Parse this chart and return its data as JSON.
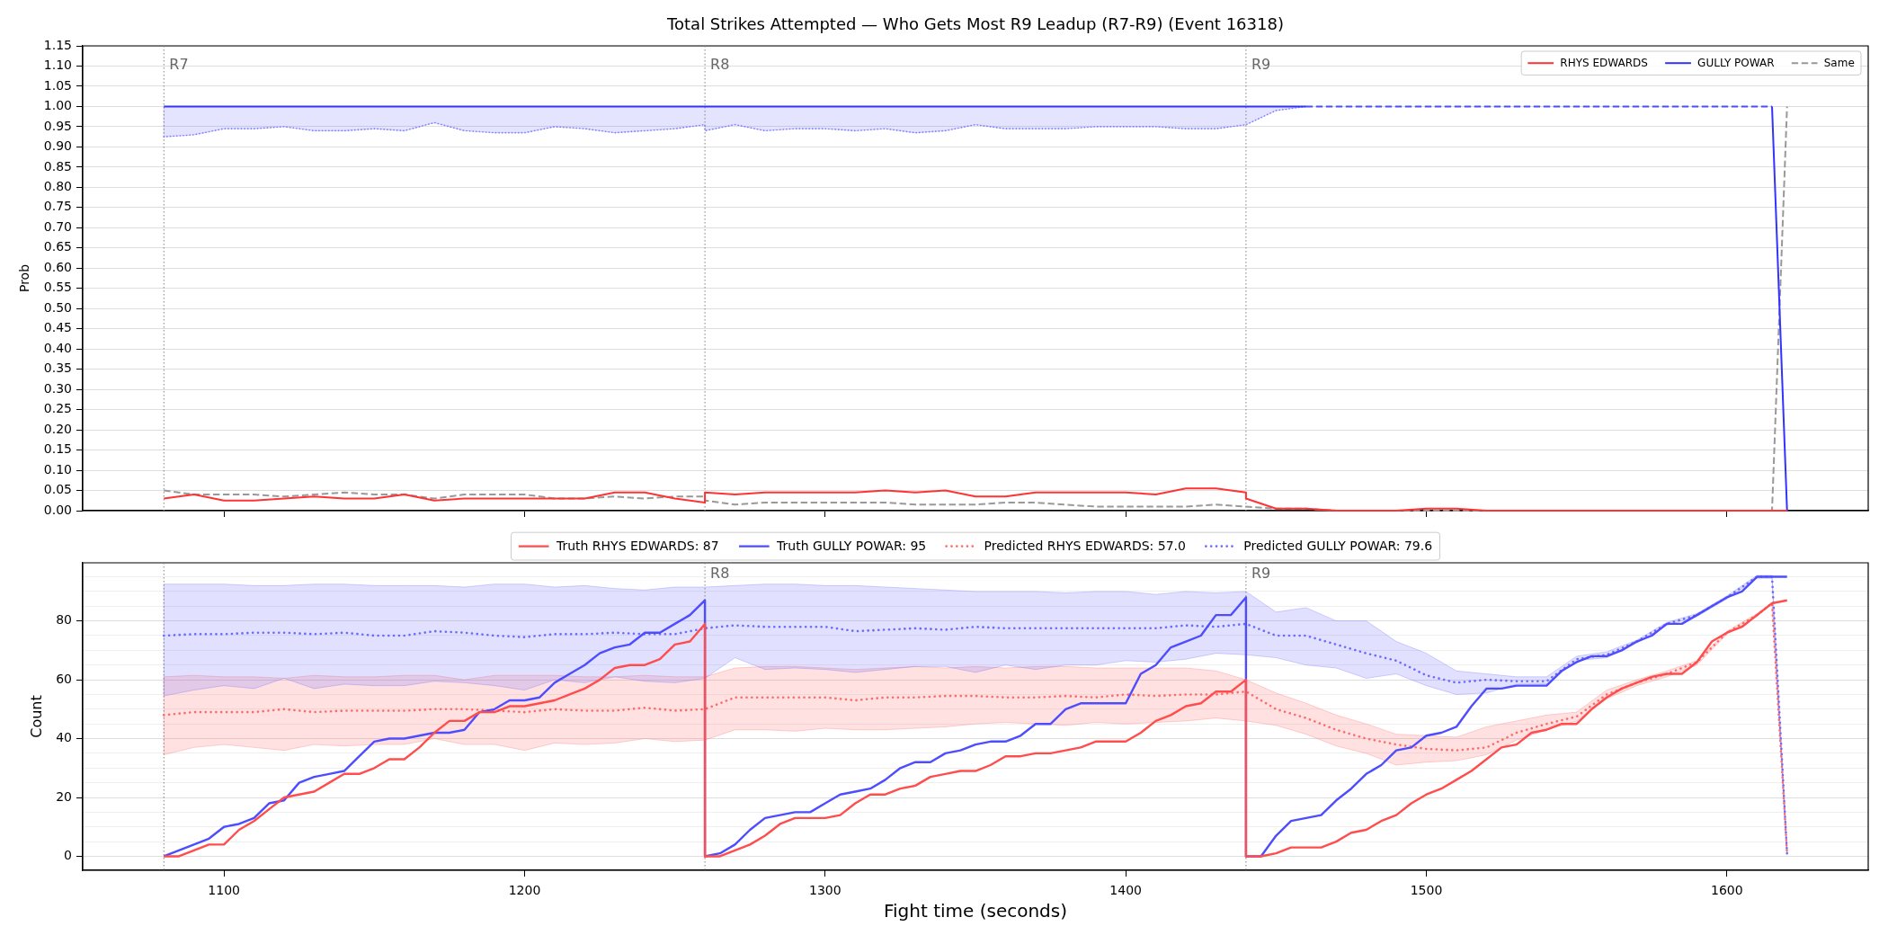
{
  "chart_data": [
    {
      "type": "line",
      "title": "Total Strikes Attempted — Who Gets Most R9 Leadup (R7-R9) (Event 16318)",
      "ylabel": "Prob",
      "xlim": [
        1053,
        1647
      ],
      "xticks": [
        1100,
        1200,
        1300,
        1400,
        1500,
        1600
      ],
      "ylim": [
        0,
        1.15
      ],
      "yticks": [
        {
          "value": 0,
          "label": "0.00"
        },
        {
          "value": 0.05,
          "label": "0.05"
        },
        {
          "value": 0.1,
          "label": "0.10"
        },
        {
          "value": 0.15,
          "label": "0.15"
        },
        {
          "value": 0.2,
          "label": "0.20"
        },
        {
          "value": 0.25,
          "label": "0.25"
        },
        {
          "value": 0.3,
          "label": "0.30"
        },
        {
          "value": 0.35,
          "label": "0.35"
        },
        {
          "value": 0.4,
          "label": "0.40"
        },
        {
          "value": 0.45,
          "label": "0.45"
        },
        {
          "value": 0.5,
          "label": "0.50"
        },
        {
          "value": 0.55,
          "label": "0.55"
        },
        {
          "value": 0.6,
          "label": "0.60"
        },
        {
          "value": 0.65,
          "label": "0.65"
        },
        {
          "value": 0.7,
          "label": "0.70"
        },
        {
          "value": 0.75,
          "label": "0.75"
        },
        {
          "value": 0.8,
          "label": "0.80"
        },
        {
          "value": 0.85,
          "label": "0.85"
        },
        {
          "value": 0.9,
          "label": "0.90"
        },
        {
          "value": 0.95,
          "label": "0.95"
        },
        {
          "value": 1,
          "label": "1.00"
        },
        {
          "value": 1.05,
          "label": "1.05"
        },
        {
          "value": 1.1,
          "label": "1.10"
        },
        {
          "value": 1.15,
          "label": "1.15"
        }
      ],
      "grid": "y",
      "legend": "top right",
      "tick_labels": "y",
      "x": [
        1080,
        1090,
        1100,
        1110,
        1120,
        1130,
        1140,
        1150,
        1160,
        1170,
        1180,
        1190,
        1200,
        1210,
        1220,
        1230,
        1240,
        1250,
        1260,
        1260,
        1270,
        1280,
        1290,
        1300,
        1310,
        1320,
        1330,
        1340,
        1350,
        1360,
        1370,
        1380,
        1390,
        1400,
        1410,
        1420,
        1430,
        1440,
        1440,
        1450,
        1460,
        1470,
        1480,
        1490,
        1500,
        1510,
        1520,
        1530,
        1540,
        1550,
        1560,
        1570,
        1580,
        1590,
        1600,
        1610,
        1615,
        1620
      ],
      "series": [
        {
          "name": "RHYS EDWARDS",
          "color": "#ff3333",
          "line_style": "solid",
          "values": [
            0.03,
            0.04,
            0.025,
            0.025,
            0.03,
            0.035,
            0.03,
            0.03,
            0.04,
            0.025,
            0.03,
            0.03,
            0.03,
            0.03,
            0.03,
            0.045,
            0.045,
            0.03,
            0.02,
            0.045,
            0.04,
            0.045,
            0.045,
            0.045,
            0.045,
            0.05,
            0.045,
            0.05,
            0.035,
            0.035,
            0.045,
            0.045,
            0.045,
            0.045,
            0.04,
            0.055,
            0.055,
            0.045,
            0.03,
            0.005,
            0.005,
            0,
            0,
            0,
            0.005,
            0.005,
            0,
            0,
            0,
            0,
            0,
            0,
            0,
            0,
            0,
            0,
            0,
            0
          ]
        },
        {
          "name": "GULLY POWAR",
          "color": "#3333ff",
          "line_style": "solid",
          "values": [
            1,
            1,
            1,
            1,
            1,
            1,
            1,
            1,
            1,
            1,
            1,
            1,
            1,
            1,
            1,
            1,
            1,
            1,
            1,
            1,
            1,
            1,
            1,
            1,
            1,
            1,
            1,
            1,
            1,
            1,
            1,
            1,
            1,
            1,
            1,
            1,
            1,
            1,
            1,
            1,
            1,
            null,
            null,
            null,
            null,
            null,
            null,
            null,
            null,
            null,
            null,
            null,
            null,
            null,
            null,
            null,
            1,
            0
          ]
        },
        {
          "name": "Same",
          "color": "#999999",
          "line_style": "dashed",
          "values": [
            0.05,
            0.04,
            0.04,
            0.04,
            0.035,
            0.04,
            0.045,
            0.04,
            0.04,
            0.03,
            0.04,
            0.04,
            0.04,
            0.03,
            0.03,
            0.035,
            0.03,
            0.035,
            0.035,
            0.025,
            0.015,
            0.02,
            0.02,
            0.02,
            0.02,
            0.02,
            0.015,
            0.015,
            0.015,
            0.02,
            0.02,
            0.015,
            0.01,
            0.01,
            0.01,
            0.01,
            0.015,
            0.01,
            0.01,
            0.005,
            0.005,
            0,
            0,
            0,
            0,
            0,
            0,
            0,
            0,
            0,
            0,
            0,
            0,
            0,
            0,
            0,
            0,
            1
          ]
        },
        {
          "color": "#7a7aff",
          "line_style": "dotted",
          "values": [
            0.925,
            0.93,
            0.945,
            0.945,
            0.95,
            0.94,
            0.94,
            0.945,
            0.94,
            0.96,
            0.94,
            0.935,
            0.935,
            0.95,
            0.945,
            0.935,
            0.94,
            0.945,
            0.955,
            0.94,
            0.955,
            0.94,
            0.945,
            0.945,
            0.94,
            0.945,
            0.935,
            0.94,
            0.955,
            0.945,
            0.945,
            0.945,
            0.95,
            0.95,
            0.95,
            0.945,
            0.945,
            0.955,
            0.955,
            0.99,
            1,
            null,
            null,
            null,
            null,
            null,
            null,
            null,
            null,
            null,
            null,
            null,
            null,
            null,
            null,
            null,
            null,
            null
          ],
          "lower": [
            0.925,
            0.93,
            0.945,
            0.945,
            0.95,
            0.94,
            0.94,
            0.945,
            0.94,
            0.96,
            0.94,
            0.935,
            0.935,
            0.95,
            0.945,
            0.935,
            0.94,
            0.945,
            0.955,
            0.94,
            0.955,
            0.94,
            0.945,
            0.945,
            0.94,
            0.945,
            0.935,
            0.94,
            0.955,
            0.945,
            0.945,
            0.945,
            0.95,
            0.95,
            0.95,
            0.945,
            0.945,
            0.955,
            0.955,
            0.99,
            1,
            null,
            null,
            null,
            null,
            null,
            null,
            null,
            null,
            null,
            null,
            null,
            null,
            null,
            null,
            null,
            null,
            null
          ],
          "upper": [
            1,
            1,
            1,
            1,
            1,
            1,
            1,
            1,
            1,
            1,
            1,
            1,
            1,
            1,
            1,
            1,
            1,
            1,
            1,
            1,
            1,
            1,
            1,
            1,
            1,
            1,
            1,
            1,
            1,
            1,
            1,
            1,
            1,
            1,
            1,
            1,
            1,
            1,
            1,
            1,
            1,
            null,
            null,
            null,
            null,
            null,
            null,
            null,
            null,
            null,
            null,
            null,
            null,
            null,
            null,
            null,
            null,
            null
          ]
        },
        {
          "color": "#4d4dff",
          "line_style": "dashed",
          "x": [
            1460,
            1615
          ],
          "values": [
            1,
            1
          ]
        }
      ],
      "ref_lines": [
        {
          "axis": "x",
          "value": 1080,
          "label": "R7",
          "color": "#808080",
          "line_style": "dotted"
        },
        {
          "axis": "x",
          "value": 1260,
          "label": "R8",
          "color": "#808080",
          "line_style": "dotted"
        },
        {
          "axis": "x",
          "value": 1440,
          "label": "R9",
          "color": "#808080",
          "line_style": "dotted"
        }
      ]
    },
    {
      "type": "line",
      "xlabel": "Fight time (seconds)",
      "ylabel": "Count",
      "xlim": [
        1053,
        1647
      ],
      "xticks": [
        1100,
        1200,
        1300,
        1400,
        1500,
        1600
      ],
      "ylim": [
        -4.75,
        99.75
      ],
      "yticks": [
        0,
        {
          "value": 5,
          "label": null
        },
        {
          "value": 10,
          "label": null
        },
        {
          "value": 15,
          "label": null
        },
        20,
        {
          "value": 25,
          "label": null
        },
        {
          "value": 30,
          "label": null
        },
        {
          "value": 35,
          "label": null
        },
        40,
        {
          "value": 45,
          "label": null
        },
        {
          "value": 50,
          "label": null
        },
        {
          "value": 55,
          "label": null
        },
        60,
        {
          "value": 65,
          "label": null
        },
        {
          "value": 70,
          "label": null
        },
        {
          "value": 75,
          "label": null
        },
        80,
        {
          "value": 85,
          "label": null
        },
        {
          "value": 90,
          "label": null
        },
        {
          "value": 95,
          "label": null
        }
      ],
      "grid": "y",
      "legend": "top",
      "x": [
        1080,
        1090,
        1100,
        1110,
        1120,
        1130,
        1140,
        1150,
        1160,
        1170,
        1180,
        1190,
        1200,
        1210,
        1220,
        1230,
        1240,
        1250,
        1260,
        1270,
        1280,
        1290,
        1300,
        1310,
        1320,
        1330,
        1340,
        1350,
        1360,
        1370,
        1380,
        1390,
        1400,
        1410,
        1420,
        1430,
        1440,
        1450,
        1460,
        1470,
        1480,
        1490,
        1500,
        1510,
        1520,
        1530,
        1540,
        1550,
        1560,
        1570,
        1580,
        1590,
        1600,
        1610,
        1615,
        1620
      ],
      "series": [
        {
          "name": "Truth RHYS EDWARDS: 87",
          "color": "#ff4d4d",
          "line_style": "solid",
          "x": [
            1080,
            1085,
            1090,
            1095,
            1100,
            1105,
            1110,
            1115,
            1120,
            1125,
            1130,
            1135,
            1140,
            1145,
            1150,
            1155,
            1160,
            1165,
            1170,
            1175,
            1180,
            1185,
            1190,
            1195,
            1200,
            1205,
            1210,
            1215,
            1220,
            1225,
            1230,
            1235,
            1240,
            1245,
            1250,
            1255,
            1260,
            1260,
            1265,
            1270,
            1275,
            1280,
            1285,
            1290,
            1295,
            1300,
            1305,
            1310,
            1315,
            1320,
            1325,
            1330,
            1335,
            1340,
            1345,
            1350,
            1355,
            1360,
            1365,
            1370,
            1375,
            1380,
            1385,
            1390,
            1395,
            1400,
            1405,
            1410,
            1415,
            1420,
            1425,
            1430,
            1435,
            1440,
            1440,
            1445,
            1450,
            1455,
            1460,
            1465,
            1470,
            1475,
            1480,
            1485,
            1490,
            1495,
            1500,
            1505,
            1510,
            1515,
            1520,
            1525,
            1530,
            1535,
            1540,
            1545,
            1550,
            1555,
            1560,
            1565,
            1570,
            1575,
            1580,
            1585,
            1590,
            1595,
            1600,
            1605,
            1610,
            1615,
            1620
          ],
          "values": [
            0,
            0,
            2,
            4,
            4,
            9,
            12,
            16,
            20,
            21,
            22,
            25,
            28,
            28,
            30,
            33,
            33,
            37,
            42,
            46,
            46,
            49,
            49,
            51,
            51,
            52,
            53,
            55,
            57,
            60,
            64,
            65,
            65,
            67,
            72,
            73,
            79,
            0,
            0,
            2,
            4,
            7,
            11,
            13,
            13,
            13,
            14,
            18,
            21,
            21,
            23,
            24,
            27,
            28,
            29,
            29,
            31,
            34,
            34,
            35,
            35,
            36,
            37,
            39,
            39,
            39,
            42,
            46,
            48,
            51,
            52,
            56,
            56,
            60,
            0,
            0,
            1,
            3,
            3,
            3,
            5,
            8,
            9,
            12,
            14,
            18,
            21,
            23,
            26,
            29,
            33,
            37,
            38,
            42,
            43,
            45,
            45,
            50,
            54,
            57,
            59,
            61,
            62,
            62,
            66,
            73,
            76,
            78,
            82,
            86,
            87
          ]
        },
        {
          "name": "Truth GULLY POWAR: 95",
          "color": "#4d4dff",
          "line_style": "solid",
          "x": [
            1080,
            1085,
            1090,
            1095,
            1100,
            1105,
            1110,
            1115,
            1120,
            1125,
            1130,
            1135,
            1140,
            1145,
            1150,
            1155,
            1160,
            1165,
            1170,
            1175,
            1180,
            1185,
            1190,
            1195,
            1200,
            1205,
            1210,
            1215,
            1220,
            1225,
            1230,
            1235,
            1240,
            1245,
            1250,
            1255,
            1260,
            1260,
            1265,
            1270,
            1275,
            1280,
            1285,
            1290,
            1295,
            1300,
            1305,
            1310,
            1315,
            1320,
            1325,
            1330,
            1335,
            1340,
            1345,
            1350,
            1355,
            1360,
            1365,
            1370,
            1375,
            1380,
            1385,
            1390,
            1395,
            1400,
            1405,
            1410,
            1415,
            1420,
            1425,
            1430,
            1435,
            1440,
            1440,
            1445,
            1450,
            1455,
            1460,
            1465,
            1470,
            1475,
            1480,
            1485,
            1490,
            1495,
            1500,
            1505,
            1510,
            1515,
            1520,
            1525,
            1530,
            1535,
            1540,
            1545,
            1550,
            1555,
            1560,
            1565,
            1570,
            1575,
            1580,
            1585,
            1590,
            1595,
            1600,
            1605,
            1610,
            1615,
            1620
          ],
          "values": [
            0,
            2,
            4,
            6,
            10,
            11,
            13,
            18,
            19,
            25,
            27,
            28,
            29,
            34,
            39,
            40,
            40,
            41,
            42,
            42,
            43,
            49,
            50,
            53,
            53,
            54,
            59,
            62,
            65,
            69,
            71,
            72,
            76,
            76,
            79,
            82,
            87,
            0,
            1,
            4,
            9,
            13,
            14,
            15,
            15,
            18,
            21,
            22,
            23,
            26,
            30,
            32,
            32,
            35,
            36,
            38,
            39,
            39,
            41,
            45,
            45,
            50,
            52,
            52,
            52,
            52,
            62,
            65,
            71,
            73,
            75,
            82,
            82,
            88,
            0,
            0,
            7,
            12,
            13,
            14,
            19,
            23,
            28,
            31,
            36,
            37,
            41,
            42,
            44,
            51,
            57,
            57,
            58,
            58,
            58,
            63,
            66,
            68,
            68,
            70,
            73,
            75,
            79,
            79,
            82,
            85,
            88,
            90,
            95,
            95,
            95
          ]
        },
        {
          "name": "Predicted RHYS EDWARDS: 57.0",
          "color": "#ff6b6b",
          "line_style": "dotted",
          "values": [
            48,
            49,
            49,
            49,
            50,
            49,
            49.5,
            49.5,
            49.5,
            50,
            50,
            49.5,
            49,
            50,
            49.5,
            49.5,
            50.5,
            49.5,
            50,
            54,
            54,
            54,
            54,
            53,
            54,
            54,
            54.5,
            54.5,
            54,
            54,
            54.5,
            54,
            55,
            54.5,
            55,
            55,
            56,
            50,
            47,
            43,
            40,
            38,
            36.5,
            36,
            37,
            42,
            45,
            47.5,
            55,
            59,
            62,
            66,
            76,
            82,
            86,
            1
          ],
          "lower": [
            34.5,
            37,
            38,
            37,
            36,
            38,
            37.5,
            38,
            38,
            40,
            38,
            38,
            36,
            38.5,
            38,
            38.5,
            40,
            39,
            39.5,
            43,
            43,
            42.5,
            43.5,
            43,
            43,
            43.5,
            44,
            45,
            45.5,
            45,
            44.5,
            45.5,
            45,
            45.5,
            46,
            47,
            46,
            44.5,
            41.5,
            37.5,
            35,
            31,
            32,
            32.5,
            34.5,
            39.5,
            43,
            46,
            53.5,
            58,
            61,
            65,
            75.5,
            81.5,
            86,
            1
          ],
          "upper": [
            61,
            61.5,
            61,
            61,
            60.5,
            61.5,
            61,
            61,
            61.5,
            61.5,
            60,
            61.5,
            61.5,
            61.5,
            61,
            61,
            61.5,
            61,
            61,
            64,
            64.5,
            64.5,
            64,
            63.5,
            64,
            64.5,
            64,
            64.5,
            64,
            64.5,
            64.5,
            64,
            64,
            64,
            64,
            63,
            60,
            55.5,
            52,
            48,
            45,
            41.5,
            41,
            40.5,
            44,
            46,
            48,
            49,
            56.5,
            60,
            63,
            66.5,
            76.5,
            82.5,
            86,
            1
          ]
        },
        {
          "name": "Predicted GULLY POWAR: 79.6",
          "color": "#6b6bff",
          "line_style": "dotted",
          "values": [
            75,
            75.5,
            75.5,
            76,
            76,
            75.5,
            76,
            75,
            75,
            76.5,
            76,
            75,
            74.5,
            75.5,
            75.5,
            76,
            75.5,
            75.5,
            77.5,
            78.5,
            78,
            78,
            78,
            76.5,
            77,
            77.5,
            77,
            78,
            77.5,
            77.5,
            77.5,
            77.5,
            77.5,
            77.5,
            78.5,
            78,
            79,
            75,
            75,
            72,
            69,
            66.5,
            61.5,
            59,
            60,
            59.5,
            59.5,
            67,
            68.5,
            73,
            79,
            82,
            88,
            95,
            95,
            1
          ],
          "lower": [
            54.5,
            56.5,
            58,
            57,
            60.5,
            57,
            58.5,
            58,
            58,
            59.5,
            59,
            58,
            56.5,
            60,
            59,
            61,
            59.5,
            59,
            60.5,
            67.5,
            63.5,
            64,
            63.5,
            62.5,
            63.5,
            64.5,
            64.5,
            62.5,
            65,
            63.5,
            65,
            65,
            66.5,
            66,
            67,
            69,
            68.5,
            67.5,
            65,
            64,
            60.5,
            62,
            58,
            55,
            55.5,
            58.5,
            58.5,
            66.5,
            67.5,
            72.5,
            78.5,
            81.5,
            87.5,
            94.5,
            94.5,
            1
          ],
          "upper": [
            92.5,
            92.5,
            92.5,
            92,
            92,
            92.5,
            92.5,
            92,
            92,
            92,
            91.5,
            92.5,
            92.5,
            91.5,
            92,
            91,
            90.5,
            91.5,
            91.5,
            92,
            92.5,
            92.5,
            92,
            92,
            91.5,
            91,
            90.5,
            90,
            90,
            90,
            89.5,
            90,
            90,
            89,
            90,
            89.5,
            90,
            83,
            84.5,
            80,
            80,
            73,
            69,
            63,
            62,
            61,
            61,
            68,
            69.5,
            73.5,
            79.5,
            82.5,
            88.5,
            95.5,
            95.5,
            1
          ]
        }
      ],
      "ref_lines": [
        {
          "axis": "x",
          "value": 1080,
          "color": "#808080",
          "line_style": "dotted"
        },
        {
          "axis": "x",
          "value": 1260,
          "label": "R8",
          "color": "#808080",
          "line_style": "dotted"
        },
        {
          "axis": "x",
          "value": 1440,
          "label": "R9",
          "color": "#808080",
          "line_style": "dotted"
        }
      ]
    }
  ]
}
